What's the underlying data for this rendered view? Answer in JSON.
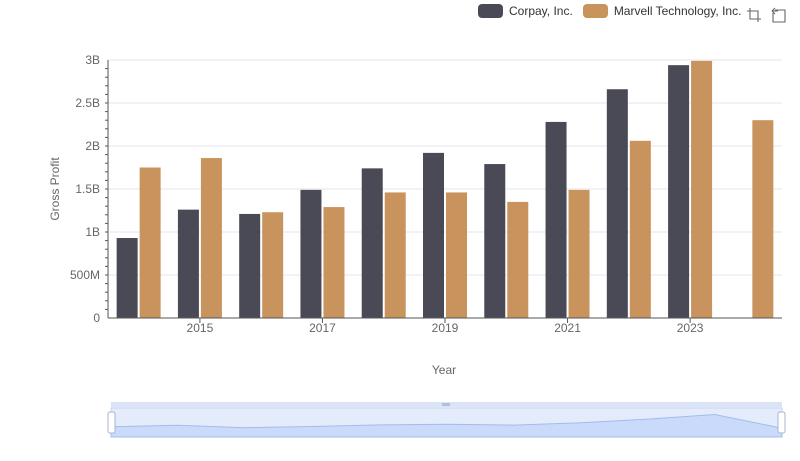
{
  "legend": {
    "items": [
      {
        "label": "Corpay, Inc.",
        "color": "#4a4a56"
      },
      {
        "label": "Marvell Technology, Inc.",
        "color": "#c9935e"
      }
    ]
  },
  "toolbox": {
    "icons": [
      "zoom-icon",
      "restore-icon"
    ]
  },
  "chart_data": {
    "type": "bar",
    "xlabel": "Year",
    "ylabel": "Gross Profit",
    "categories": [
      "2014",
      "2015",
      "2016",
      "2017",
      "2018",
      "2019",
      "2020",
      "2021",
      "2022",
      "2023",
      "2024"
    ],
    "x_tick_labels": [
      "2015",
      "2017",
      "2019",
      "2021",
      "2023"
    ],
    "y_ticks": [
      0,
      500000000,
      1000000000,
      1500000000,
      2000000000,
      2500000000,
      3000000000
    ],
    "y_tick_labels": [
      "0",
      "500M",
      "1B",
      "1.5B",
      "2B",
      "2.5B",
      "3B"
    ],
    "ylim": [
      0,
      3000000000
    ],
    "grid": true,
    "legend_position": "top-right",
    "series": [
      {
        "name": "Corpay, Inc.",
        "color": "#4a4a56",
        "values": [
          930000000,
          1260000000,
          1210000000,
          1490000000,
          1740000000,
          1920000000,
          1790000000,
          2280000000,
          2660000000,
          2940000000,
          null
        ]
      },
      {
        "name": "Marvell Technology, Inc.",
        "color": "#c9935e",
        "values": [
          1750000000,
          1860000000,
          1230000000,
          1290000000,
          1460000000,
          1460000000,
          1350000000,
          1490000000,
          2060000000,
          2990000000,
          2300000000
        ]
      }
    ]
  }
}
